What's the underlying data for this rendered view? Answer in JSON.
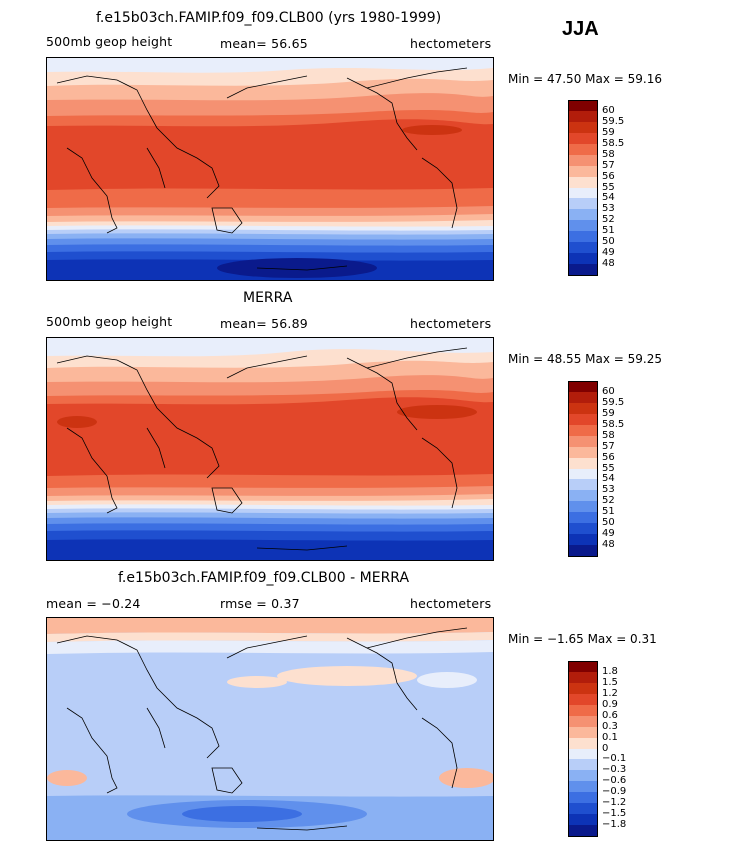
{
  "season": "JJA",
  "panels": [
    {
      "title": "f.e15b03ch.FAMIP.f09_f09.CLB00 (yrs 1980-1999)",
      "field": "500mb geop height",
      "stat1": "mean=  56.65",
      "stat2": "",
      "units": "hectometers",
      "minmax": "Min =  47.50 Max =  59.16",
      "colorbar": {
        "labels": [
          "60",
          "59.5",
          "59",
          "58.5",
          "58",
          "57",
          "56",
          "55",
          "54",
          "53",
          "52",
          "51",
          "50",
          "49",
          "48"
        ],
        "colors": [
          "#800000",
          "#b21d0b",
          "#cc3311",
          "#e2472a",
          "#ef6b48",
          "#f59172",
          "#fbb89b",
          "#fde0cf",
          "#e8eefb",
          "#b8cef8",
          "#8ab1f3",
          "#6090ec",
          "#3c6fe2",
          "#1f4fcf",
          "#0d33b6",
          "#0a1a8c"
        ]
      }
    },
    {
      "title": "MERRA",
      "field": "500mb geop height",
      "stat1": "mean=  56.89",
      "stat2": "",
      "units": "hectometers",
      "minmax": "Min =  48.55 Max =  59.25",
      "colorbar": {
        "labels": [
          "60",
          "59.5",
          "59",
          "58.5",
          "58",
          "57",
          "56",
          "55",
          "54",
          "53",
          "52",
          "51",
          "50",
          "49",
          "48"
        ],
        "colors": [
          "#800000",
          "#b21d0b",
          "#cc3311",
          "#e2472a",
          "#ef6b48",
          "#f59172",
          "#fbb89b",
          "#fde0cf",
          "#e8eefb",
          "#b8cef8",
          "#8ab1f3",
          "#6090ec",
          "#3c6fe2",
          "#1f4fcf",
          "#0d33b6",
          "#0a1a8c"
        ]
      }
    },
    {
      "title": "f.e15b03ch.FAMIP.f09_f09.CLB00 - MERRA",
      "field": "mean =  −0.24",
      "stat1": "rmse =   0.37",
      "stat2": "",
      "units": "hectometers",
      "minmax": "Min =  −1.65 Max =   0.31",
      "colorbar": {
        "labels": [
          "1.8",
          "1.5",
          "1.2",
          "0.9",
          "0.6",
          "0.3",
          "0.1",
          "0",
          "−0.1",
          "−0.3",
          "−0.6",
          "−0.9",
          "−1.2",
          "−1.5",
          "−1.8"
        ],
        "colors": [
          "#800000",
          "#b21d0b",
          "#cc3311",
          "#e2472a",
          "#ef6b48",
          "#f59172",
          "#fbb89b",
          "#fde0cf",
          "#e8eefb",
          "#b8cef8",
          "#8ab1f3",
          "#6090ec",
          "#3c6fe2",
          "#1f4fcf",
          "#0d33b6",
          "#0a1a8c"
        ]
      }
    }
  ]
}
